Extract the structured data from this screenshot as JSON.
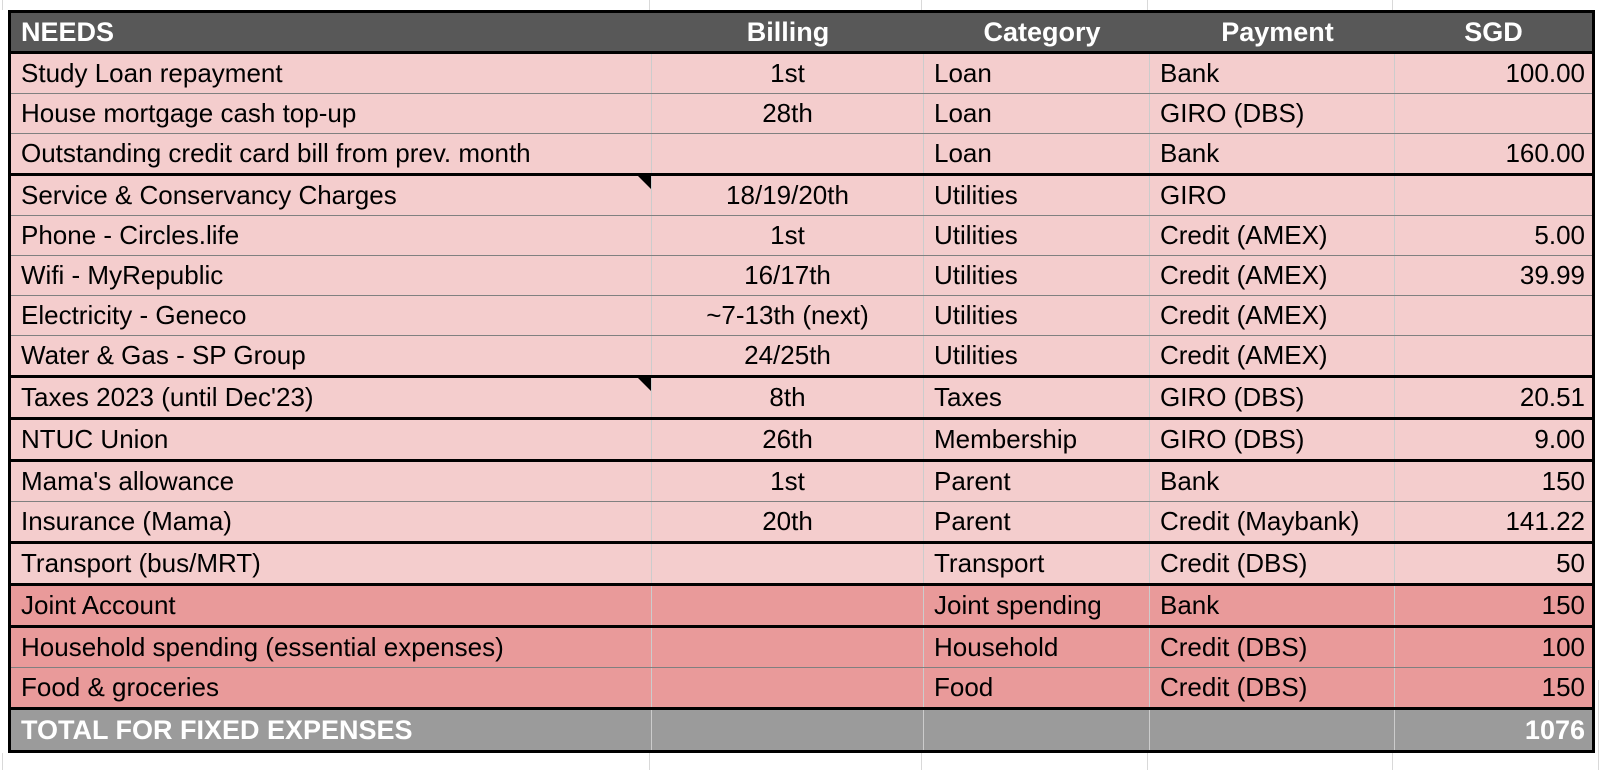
{
  "table": {
    "header": {
      "needs": "NEEDS",
      "billing": "Billing",
      "category": "Category",
      "payment": "Payment",
      "sgd": "SGD"
    },
    "rows": [
      {
        "needs": "Study Loan repayment",
        "billing": "1st",
        "category": "Loan",
        "payment": "Bank",
        "sgd": "100.00",
        "emphasis": false,
        "comment": false,
        "sep": "thin"
      },
      {
        "needs": "House mortgage cash top-up",
        "billing": "28th",
        "category": "Loan",
        "payment": "GIRO (DBS)",
        "sgd": "",
        "emphasis": false,
        "comment": false,
        "sep": "thin"
      },
      {
        "needs": "Outstanding credit card bill from prev. month",
        "billing": "",
        "category": "Loan",
        "payment": "Bank",
        "sgd": "160.00",
        "emphasis": false,
        "comment": false,
        "sep": "thick"
      },
      {
        "needs": "Service & Conservancy Charges",
        "billing": "18/19/20th",
        "category": "Utilities",
        "payment": "GIRO",
        "sgd": "",
        "emphasis": false,
        "comment": true,
        "sep": "thin"
      },
      {
        "needs": "Phone - Circles.life",
        "billing": "1st",
        "category": "Utilities",
        "payment": "Credit (AMEX)",
        "sgd": "5.00",
        "emphasis": false,
        "comment": false,
        "sep": "thin"
      },
      {
        "needs": "Wifi - MyRepublic",
        "billing": "16/17th",
        "category": "Utilities",
        "payment": "Credit (AMEX)",
        "sgd": "39.99",
        "emphasis": false,
        "comment": false,
        "sep": "thin"
      },
      {
        "needs": "Electricity - Geneco",
        "billing": "~7-13th (next)",
        "category": "Utilities",
        "payment": "Credit (AMEX)",
        "sgd": "",
        "emphasis": false,
        "comment": false,
        "sep": "thin"
      },
      {
        "needs": "Water & Gas - SP Group",
        "billing": "24/25th",
        "category": "Utilities",
        "payment": "Credit (AMEX)",
        "sgd": "",
        "emphasis": false,
        "comment": false,
        "sep": "thick"
      },
      {
        "needs": "Taxes 2023 (until Dec'23)",
        "billing": "8th",
        "category": "Taxes",
        "payment": "GIRO (DBS)",
        "sgd": "20.51",
        "emphasis": false,
        "comment": true,
        "sep": "thick"
      },
      {
        "needs": "NTUC Union",
        "billing": "26th",
        "category": "Membership",
        "payment": "GIRO (DBS)",
        "sgd": "9.00",
        "emphasis": false,
        "comment": false,
        "sep": "thick"
      },
      {
        "needs": "Mama's allowance",
        "billing": "1st",
        "category": "Parent",
        "payment": "Bank",
        "sgd": "150",
        "emphasis": false,
        "comment": false,
        "sep": "thin"
      },
      {
        "needs": "Insurance (Mama)",
        "billing": "20th",
        "category": "Parent",
        "payment": "Credit (Maybank)",
        "sgd": "141.22",
        "emphasis": false,
        "comment": false,
        "sep": "thick"
      },
      {
        "needs": "Transport (bus/MRT)",
        "billing": "",
        "category": "Transport",
        "payment": "Credit (DBS)",
        "sgd": "50",
        "emphasis": false,
        "comment": false,
        "sep": "thick"
      },
      {
        "needs": "Joint Account",
        "billing": "",
        "category": "Joint spending",
        "payment": "Bank",
        "sgd": "150",
        "emphasis": true,
        "comment": false,
        "sep": "thick"
      },
      {
        "needs": "Household spending (essential expenses)",
        "billing": "",
        "category": "Household",
        "payment": "Credit (DBS)",
        "sgd": "100",
        "emphasis": true,
        "comment": false,
        "sep": "thin"
      },
      {
        "needs": "Food & groceries",
        "billing": "",
        "category": "Food",
        "payment": "Credit (DBS)",
        "sgd": "150",
        "emphasis": true,
        "comment": false,
        "sep": "thick"
      }
    ],
    "total": {
      "label": "TOTAL FOR FIXED EXPENSES",
      "billing": "",
      "category": "",
      "payment": "",
      "sgd": "1076"
    }
  },
  "colors": {
    "header_bg": "#585858",
    "total_bg": "#9b9b9b",
    "row_light": "#f4cdcd",
    "row_emphasis": "#e99a9a",
    "separator_thick": "#000000",
    "separator_thin": "#808080",
    "gridline": "#cccccc"
  }
}
